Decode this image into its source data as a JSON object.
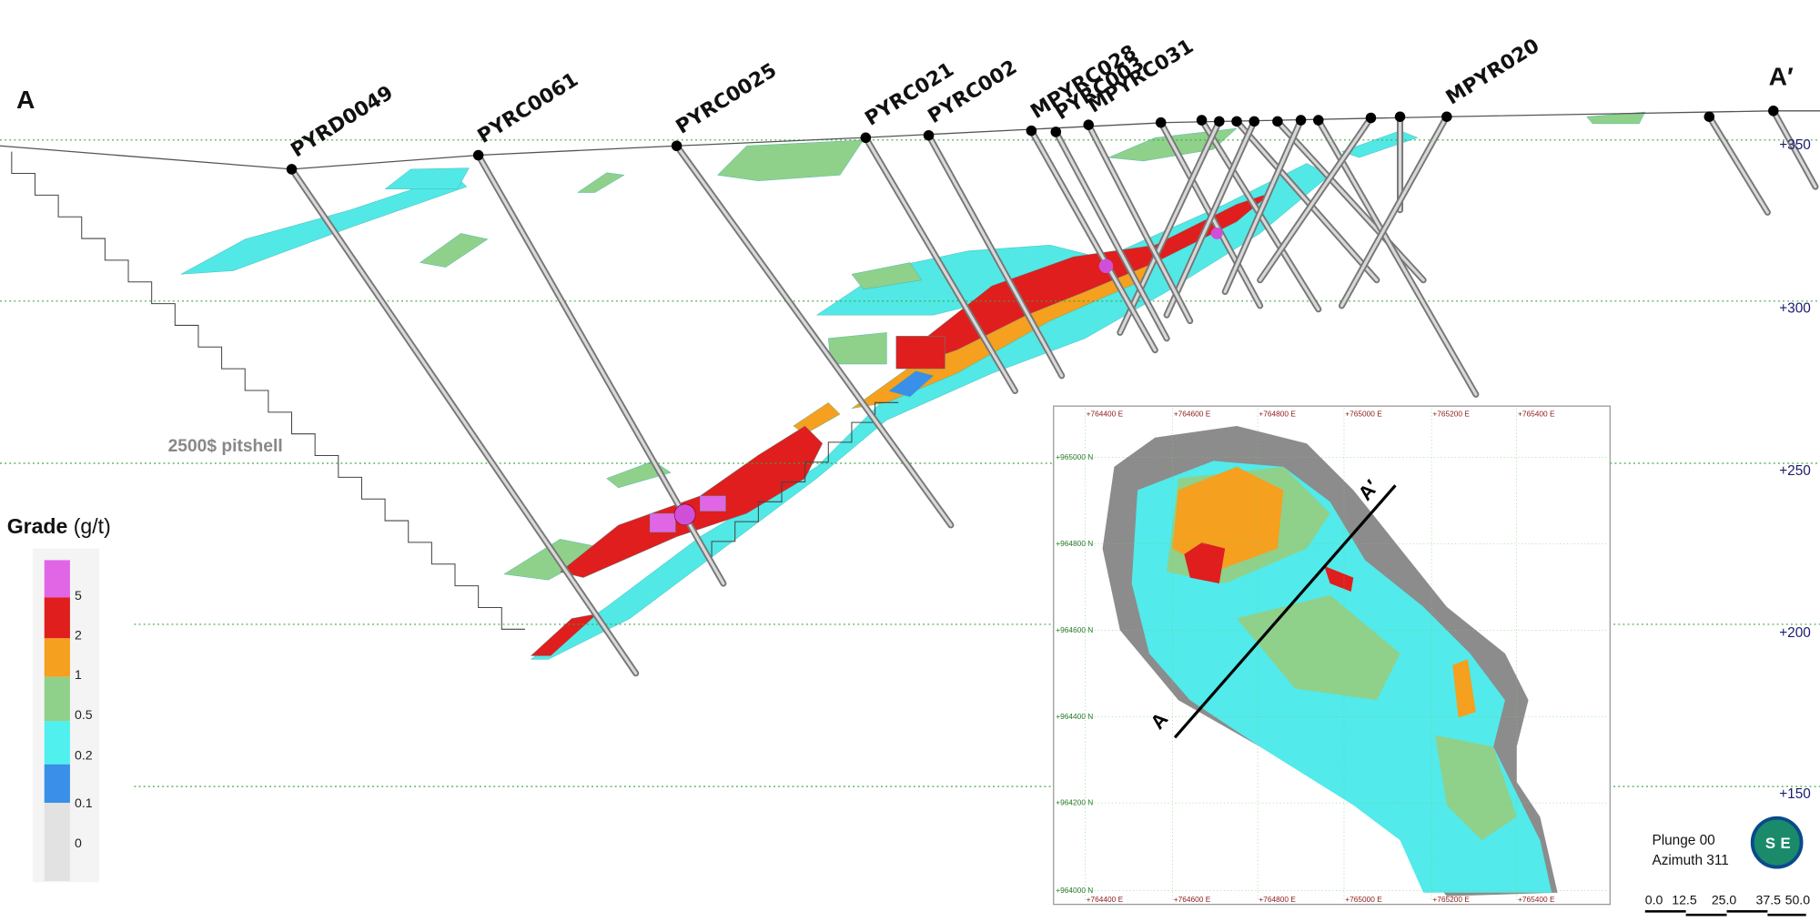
{
  "section": {
    "start_label": "A",
    "end_label": "A′",
    "pitshell_label": "2500$ pitshell",
    "drillholes": [
      "PYRD0049",
      "PYRC0061",
      "PYRC0025",
      "PYRC021",
      "PYRC002",
      "MPYRC028",
      "PYRC003",
      "MPYRC031",
      "MPYR020"
    ],
    "elevations": [
      "+350",
      "+300",
      "+250",
      "+200",
      "+150"
    ]
  },
  "legend": {
    "title": "Grade",
    "unit": "(g/t)",
    "classes": [
      "5",
      "2",
      "1",
      "0.5",
      "0.2",
      "0.1",
      "0"
    ]
  },
  "inset": {
    "eastings": [
      "+764400 E",
      "+764600 E",
      "+764800 E",
      "+765000 E",
      "+765200 E",
      "+765400 E"
    ],
    "northings": [
      "+965000 N",
      "+964800 N",
      "+964600 N",
      "+964400 N",
      "+964200 N",
      "+964000 N"
    ],
    "start_label": "A",
    "end_label": "A′"
  },
  "view": {
    "plunge": "Plunge 00",
    "azimuth": "Azimuth 311"
  },
  "scale_bar": [
    "0.0",
    "12.5",
    "25.0",
    "37.5",
    "50.0"
  ],
  "logo": [
    "S",
    "E"
  ]
}
